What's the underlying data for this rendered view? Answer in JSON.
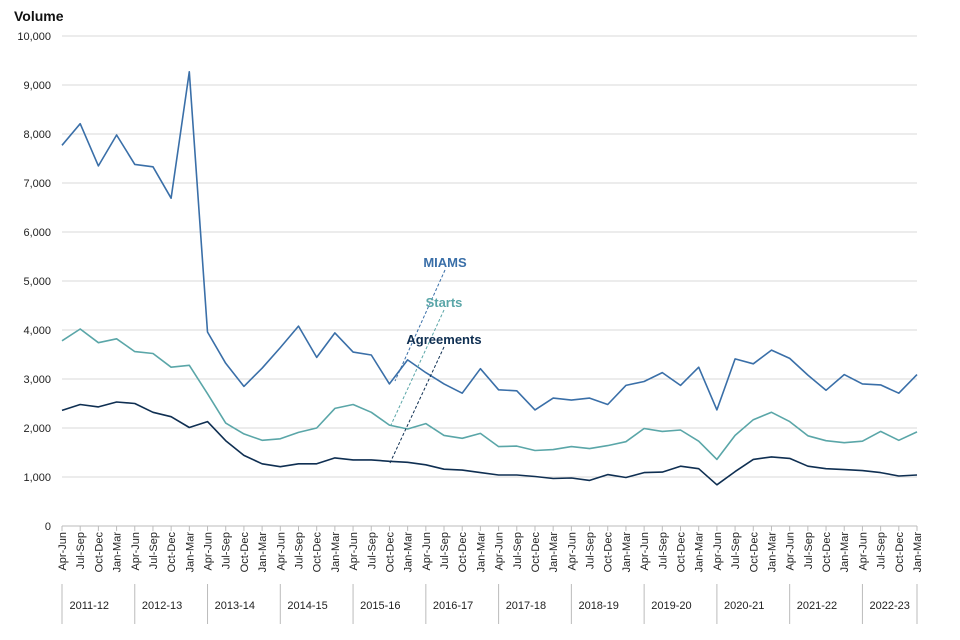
{
  "chart_data": {
    "type": "line",
    "title": "",
    "ylabel": "Volume",
    "xlabel": "",
    "ylim": [
      0,
      10000
    ],
    "yticks": [
      0,
      1000,
      2000,
      3000,
      4000,
      5000,
      6000,
      7000,
      8000,
      9000,
      10000
    ],
    "ytick_labels": [
      "0",
      "1,000",
      "2,000",
      "3,000",
      "4,000",
      "5,000",
      "6,000",
      "7,000",
      "8,000",
      "9,000",
      "10,000"
    ],
    "grid": true,
    "categories": [
      "Apr-Jun",
      "Jul-Sep",
      "Oct-Dec",
      "Jan-Mar",
      "Apr-Jun",
      "Jul-Sep",
      "Oct-Dec",
      "Jan-Mar",
      "Apr-Jun",
      "Jul-Sep",
      "Oct-Dec",
      "Jan-Mar",
      "Apr-Jun",
      "Jul-Sep",
      "Oct-Dec",
      "Jan-Mar",
      "Apr-Jun",
      "Jul-Sep",
      "Oct-Dec",
      "Jan-Mar",
      "Apr-Jun",
      "Jul-Sep",
      "Oct-Dec",
      "Jan-Mar",
      "Apr-Jun",
      "Jul-Sep",
      "Oct-Dec",
      "Jan-Mar",
      "Apr-Jun",
      "Jul-Sep",
      "Oct-Dec",
      "Jan-Mar",
      "Apr-Jun",
      "Jul-Sep",
      "Oct-Dec",
      "Jan-Mar",
      "Apr-Jun",
      "Jul-Sep",
      "Oct-Dec",
      "Jan-Mar",
      "Apr-Jun",
      "Jul-Sep",
      "Oct-Dec",
      "Jan-Mar",
      "Apr-Jun",
      "Jul-Sep",
      "Oct-Dec",
      "Jan-Mar"
    ],
    "years": [
      "2011-12",
      "2012-13",
      "2013-14",
      "2014-15",
      "2015-16",
      "2016-17",
      "2017-18",
      "2018-19",
      "2019-20",
      "2020-21",
      "2021-22",
      "2022-23"
    ],
    "series": [
      {
        "name": "MIAMS",
        "color": "#3a6fa8",
        "values": [
          7770,
          8210,
          7350,
          7980,
          7380,
          7330,
          6690,
          9270,
          3960,
          3320,
          2850,
          3220,
          3640,
          4080,
          3440,
          3940,
          3550,
          3490,
          2900,
          3390,
          3130,
          2900,
          2710,
          3210,
          2780,
          2760,
          2370,
          2610,
          2570,
          2610,
          2480,
          2870,
          2950,
          3130,
          2870,
          3240,
          2370,
          3410,
          3310,
          3590,
          3420,
          3080,
          2770,
          3090,
          2900,
          2880,
          2710,
          3090
        ]
      },
      {
        "name": "Starts",
        "color": "#5aa6a8",
        "values": [
          3780,
          4020,
          3740,
          3820,
          3560,
          3520,
          3240,
          3280,
          2700,
          2100,
          1880,
          1750,
          1780,
          1910,
          2000,
          2400,
          2480,
          2320,
          2060,
          1980,
          2090,
          1850,
          1790,
          1890,
          1620,
          1630,
          1540,
          1560,
          1620,
          1580,
          1640,
          1720,
          1990,
          1930,
          1960,
          1730,
          1360,
          1850,
          2170,
          2320,
          2130,
          1840,
          1740,
          1700,
          1730,
          1930,
          1750,
          1920
        ]
      },
      {
        "name": "Agreements",
        "color": "#0f2f52",
        "values": [
          2360,
          2480,
          2430,
          2530,
          2500,
          2320,
          2230,
          2010,
          2130,
          1740,
          1440,
          1270,
          1210,
          1270,
          1270,
          1390,
          1350,
          1350,
          1320,
          1300,
          1250,
          1160,
          1140,
          1090,
          1040,
          1040,
          1010,
          970,
          980,
          930,
          1050,
          990,
          1090,
          1100,
          1220,
          1170,
          840,
          1110,
          1360,
          1410,
          1380,
          1220,
          1170,
          1150,
          1130,
          1090,
          1020,
          1040
        ]
      }
    ]
  }
}
